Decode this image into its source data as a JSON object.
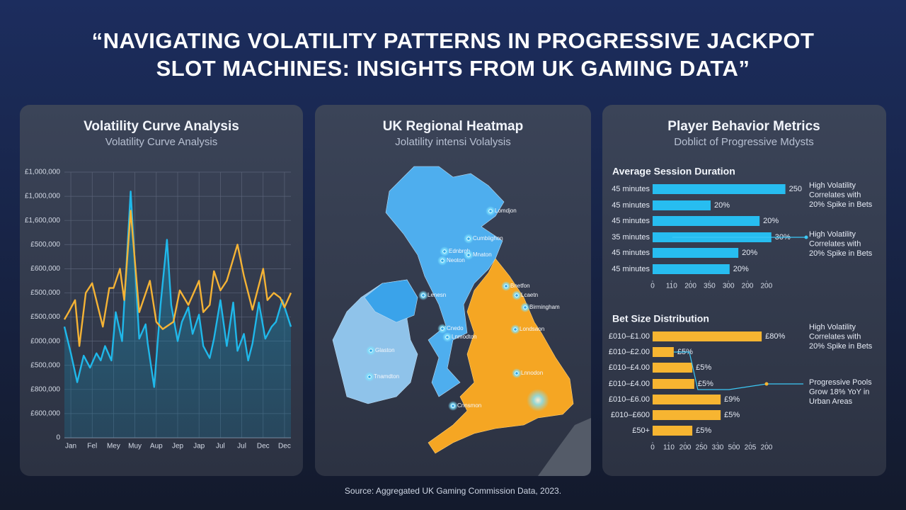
{
  "title": [
    "“NAVIGATING VOLATILITY PATTERNS IN PROGRESSIVE JACKPOT",
    "SLOT MACHINES: INSIGHTS FROM UK GAMING DATA”"
  ],
  "source": "Source: Aggregated UK Gaming Commission Data, 2023.",
  "chart_data": [
    {
      "type": "line",
      "title": "Volatility Curve Analysis",
      "subtitle": "Volatility Curve Analysis",
      "xlim": [
        -0.3,
        10.3
      ],
      "xticks": [
        {
          "value": 0,
          "label": "Jan"
        },
        {
          "value": 1,
          "label": "Fel"
        },
        {
          "value": 2,
          "label": "Mey"
        },
        {
          "value": 3,
          "label": "Muy"
        },
        {
          "value": 4,
          "label": "Aup"
        },
        {
          "value": 5,
          "label": "Jep"
        },
        {
          "value": 6,
          "label": "Jap"
        },
        {
          "value": 7,
          "label": "Jul"
        },
        {
          "value": 8,
          "label": "Jul"
        },
        {
          "value": 9,
          "label": "Dec"
        },
        {
          "value": 10,
          "label": "Dec"
        }
      ],
      "ylim": [
        0,
        1100000
      ],
      "yticks": [
        0,
        {
          "value": 100000,
          "label": "£600,000"
        },
        {
          "value": 200000,
          "label": "£800,000"
        },
        {
          "value": 300000,
          "label": "£500,000"
        },
        {
          "value": 400000,
          "label": "£000,000"
        },
        {
          "value": 500000,
          "label": "£500,000"
        },
        {
          "value": 600000,
          "label": "£500,000"
        },
        {
          "value": 700000,
          "label": "£600,000"
        },
        {
          "value": 800000,
          "label": "£500,000"
        },
        {
          "value": 900000,
          "label": "£1,600,000"
        },
        {
          "value": 1000000,
          "label": "£1,000,000"
        },
        {
          "value": 1100000,
          "label": "£1,000,000"
        }
      ],
      "grid": true,
      "series": [
        {
          "color": "#1fb8ea",
          "area": true,
          "x": [
            -0.3,
            0,
            0.3,
            0.6,
            0.9,
            1.2,
            1.4,
            1.6,
            1.9,
            2.1,
            2.4,
            2.8,
            3.2,
            3.5,
            3.6,
            3.9,
            4.2,
            4.5,
            4.7,
            5.0,
            5.2,
            5.5,
            5.7,
            6.0,
            6.2,
            6.5,
            6.7,
            7.0,
            7.3,
            7.6,
            7.8,
            8.1,
            8.3,
            8.5,
            8.8,
            9.1,
            9.4,
            9.6,
            9.9,
            10.3
          ],
          "values": [
            460000,
            350000,
            230000,
            340000,
            290000,
            350000,
            320000,
            380000,
            320000,
            520000,
            400000,
            1020000,
            410000,
            470000,
            390000,
            210000,
            550000,
            820000,
            550000,
            400000,
            480000,
            540000,
            430000,
            510000,
            380000,
            330000,
            410000,
            570000,
            380000,
            560000,
            360000,
            430000,
            320000,
            390000,
            560000,
            410000,
            460000,
            480000,
            570000,
            460000
          ]
        },
        {
          "color": "#f5b335",
          "area": false,
          "x": [
            -0.3,
            -0.1,
            0.2,
            0.4,
            0.7,
            1.0,
            1.5,
            1.8,
            2.0,
            2.3,
            2.5,
            2.8,
            3.2,
            3.7,
            4.0,
            4.3,
            4.8,
            5.1,
            5.5,
            6.0,
            6.2,
            6.5,
            6.7,
            7.0,
            7.3,
            7.8,
            8.1,
            8.5,
            9.0,
            9.2,
            9.5,
            9.8,
            10.0,
            10.3
          ],
          "values": [
            490000,
            520000,
            570000,
            380000,
            600000,
            640000,
            460000,
            620000,
            620000,
            700000,
            570000,
            940000,
            520000,
            650000,
            480000,
            450000,
            480000,
            610000,
            550000,
            650000,
            520000,
            550000,
            690000,
            610000,
            650000,
            800000,
            670000,
            530000,
            700000,
            570000,
            600000,
            580000,
            540000,
            600000
          ]
        }
      ]
    },
    {
      "type": "hbar",
      "title": "Average Session Duration",
      "categories": [
        "45 minutes",
        "45 minutes",
        "45 minutes",
        "35 minutes",
        "45 minutes",
        "45 minutes"
      ],
      "values": [
        350,
        153,
        282,
        313,
        226,
        203
      ],
      "labels": [
        "250",
        "20%",
        "20%",
        "30%",
        "20%",
        "20%"
      ],
      "color": "#27bdf0",
      "xlim": [
        0,
        360
      ],
      "xticks": [
        0,
        {
          "value": 50,
          "label": "110"
        },
        {
          "value": 100,
          "label": "200"
        },
        {
          "value": 150,
          "label": "350"
        },
        {
          "value": 200,
          "label": "300"
        },
        {
          "value": 250,
          "label": "200"
        },
        {
          "value": 300,
          "label": "200"
        }
      ],
      "annotations": [
        [
          "High Volatility",
          "Correlates with",
          "20% Spike in Bets"
        ],
        [
          "High Volatility",
          "Correlates with",
          "20% Spike in Bets"
        ]
      ]
    },
    {
      "type": "hbar",
      "title": "Bet Size Distribution",
      "categories": [
        "£010–£1.00",
        "£010–£2.00",
        "£010–£4.00",
        "£010–£4.00",
        "£010–£6.00",
        "£010–£600",
        "£50+"
      ],
      "values": [
        335,
        65,
        122,
        128,
        209,
        209,
        122
      ],
      "labels": [
        "£80%",
        "£5%",
        "£5%",
        "£5%",
        "£9%",
        "£5%",
        "£5%"
      ],
      "color": "#f7b531",
      "xlim": [
        0,
        360
      ],
      "xticks": [
        0,
        {
          "value": 50,
          "label": "110"
        },
        {
          "value": 100,
          "label": "200"
        },
        {
          "value": 150,
          "label": "250"
        },
        {
          "value": 200,
          "label": "330"
        },
        {
          "value": 250,
          "label": "500"
        },
        {
          "value": 300,
          "label": "205"
        },
        {
          "value": 350,
          "label": "200"
        }
      ],
      "annotations": [
        [
          "High Volatility",
          "Correlates with",
          "20% Spike in Bets"
        ],
        [
          "Progressive Pools",
          "Grow 18% YoY in",
          "Urban Areas"
        ]
      ]
    }
  ],
  "map": {
    "title": "UK Regional Heatmap",
    "subtitle": "Jolatility intensi Volalysis",
    "labels": [
      "Lomdjon",
      "Cumbiighon",
      "Ednbrgh",
      "Mnaton",
      "Neoton",
      "Bnetfon",
      "Lenesn",
      "Lcaetn",
      "Birmingham",
      "Cnedo",
      "Lnmodton",
      "Londsaon",
      "Glaston",
      "Tnamdton",
      "Lnnodon",
      "Cnnsmon"
    ]
  },
  "metrics_panel": {
    "title": "Player Behavior Metrics",
    "subtitle": "Doblict of Progressive Mdysts"
  }
}
